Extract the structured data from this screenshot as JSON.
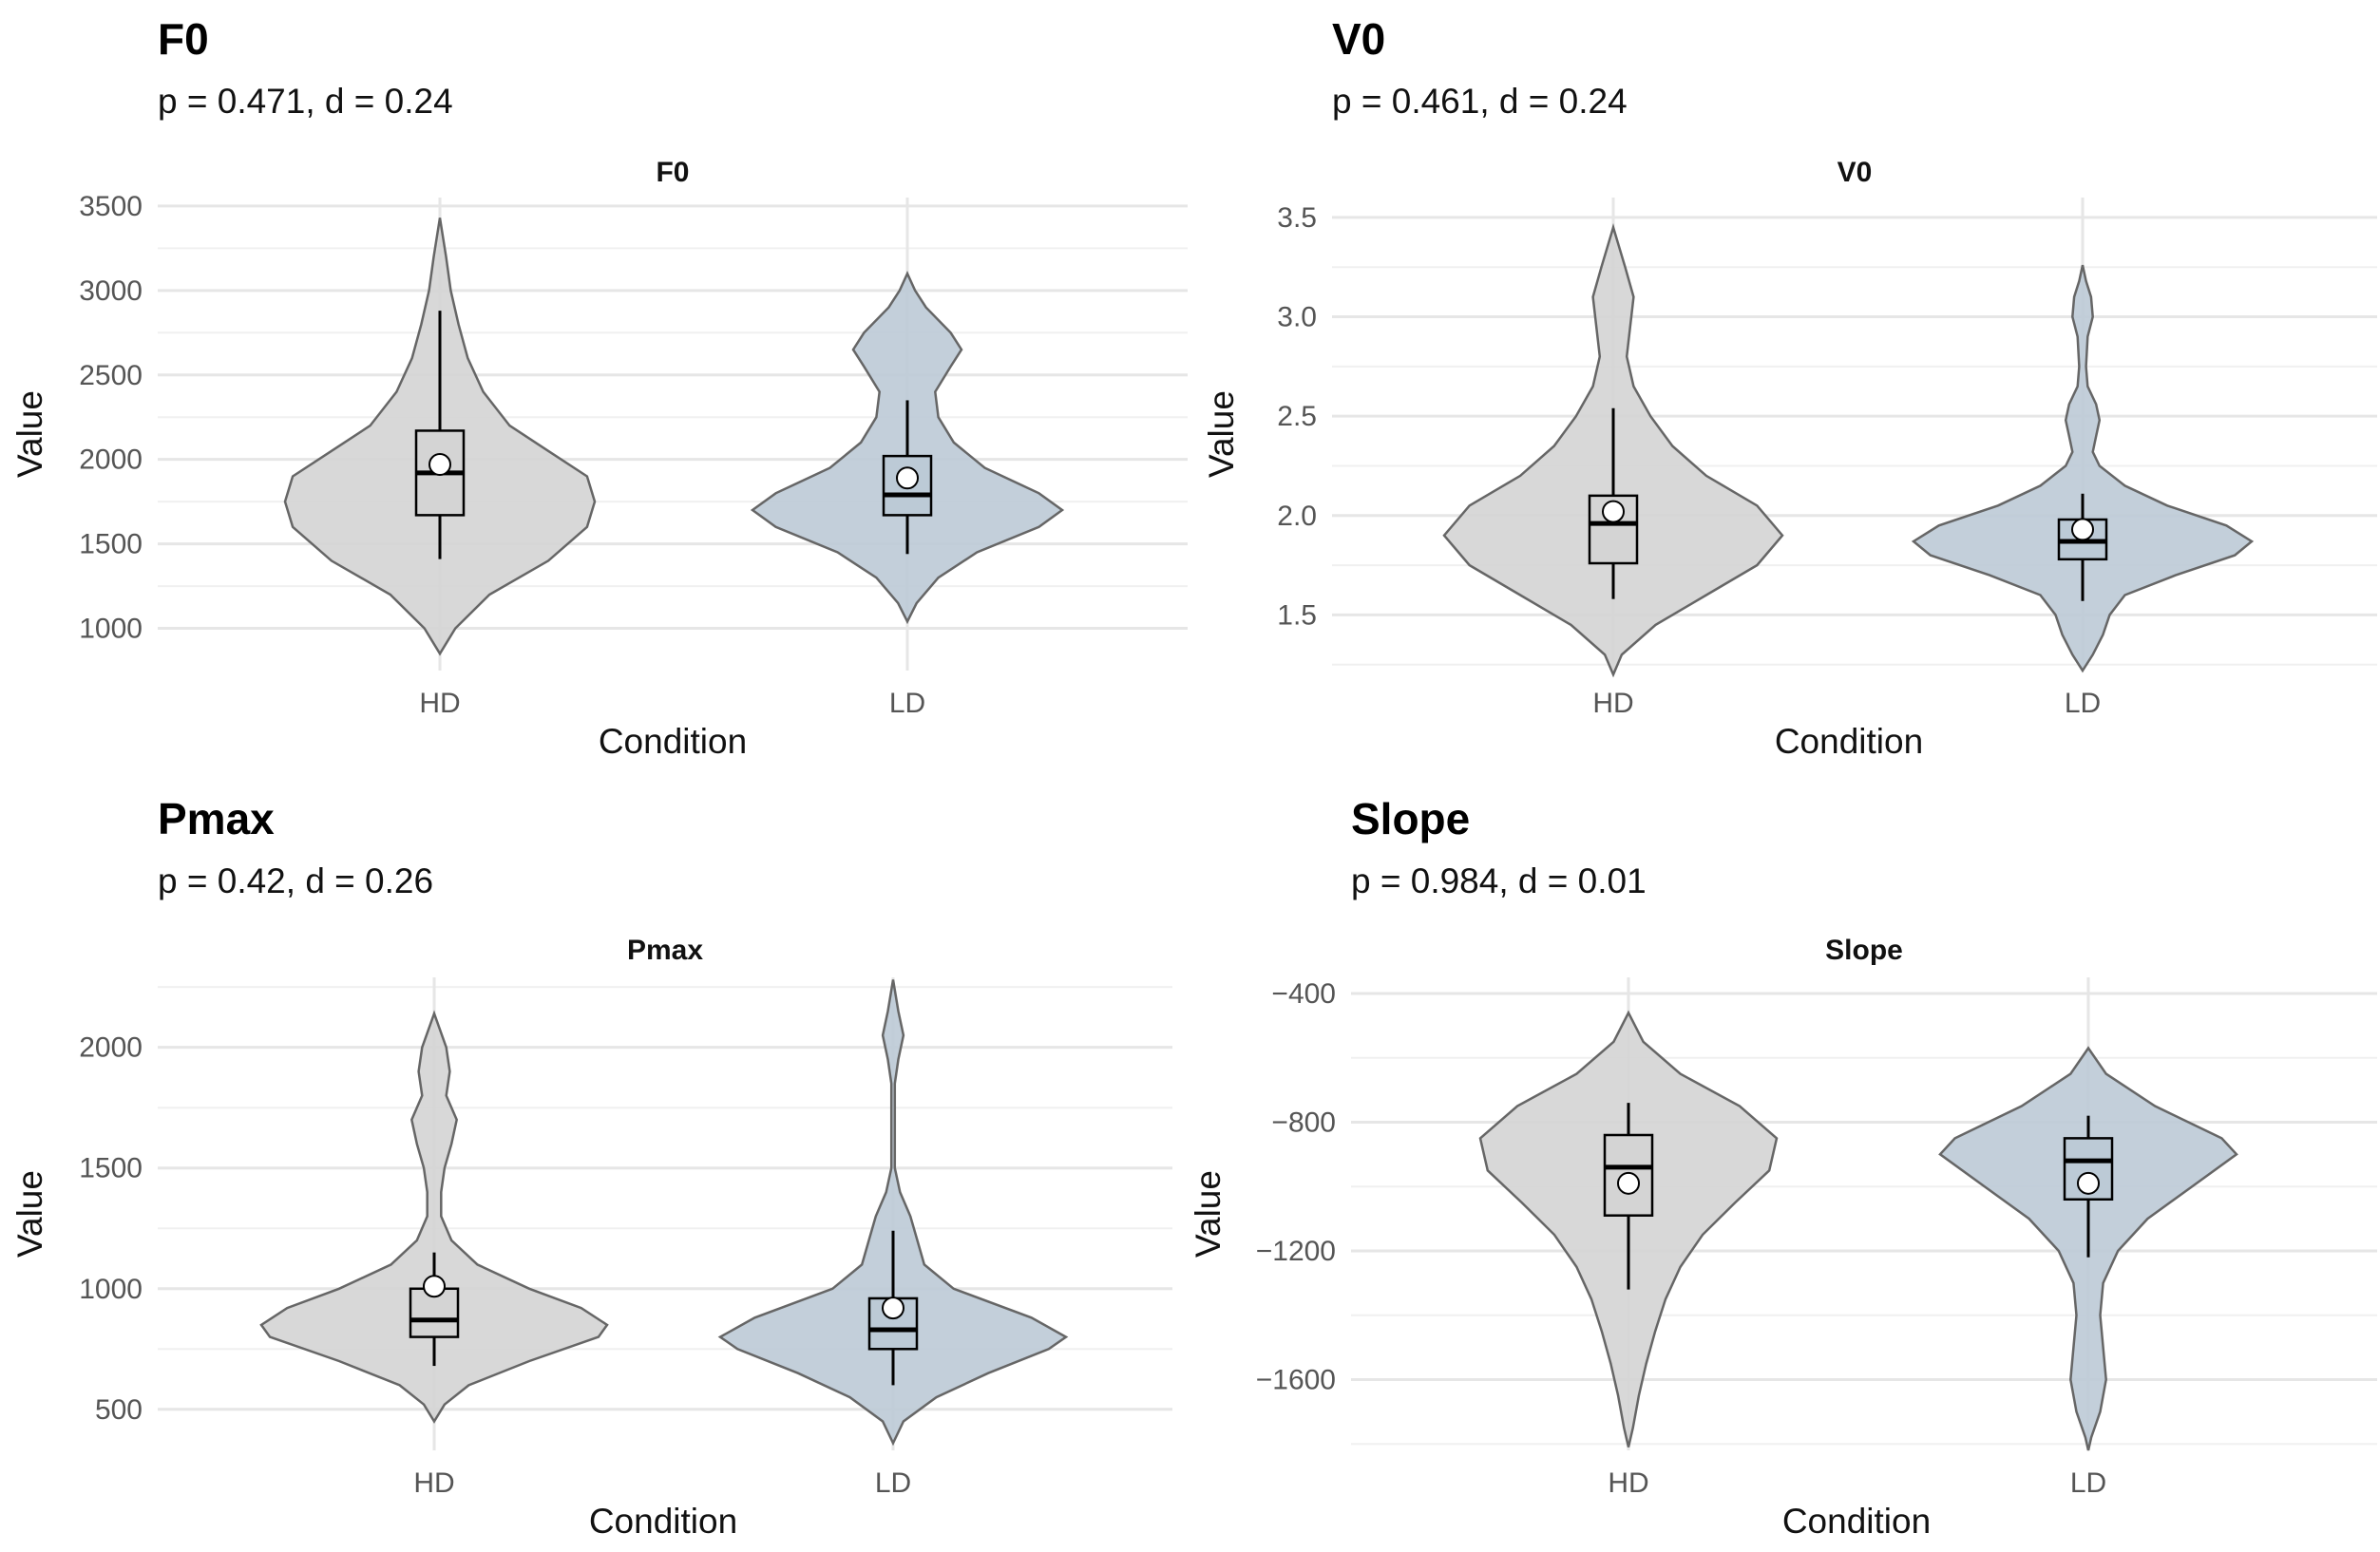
{
  "colors": {
    "HD": "#d4d4d4",
    "LD": "#bccad6"
  },
  "chart_data": [
    {
      "type": "violin",
      "title": "F0",
      "subtitle": "p = 0.471, d = 0.24",
      "facet_label": "F0",
      "xlabel": "Condition",
      "ylabel": "Value",
      "ylim": [
        750,
        3550
      ],
      "yticks": [
        1000,
        1500,
        2000,
        2500,
        3000,
        3500
      ],
      "categories": [
        "HD",
        "LD"
      ],
      "groups": [
        {
          "name": "HD",
          "whisker_low": 1410,
          "q1": 1670,
          "median": 1920,
          "q3": 2170,
          "whisker_high": 2880,
          "mean": 1970,
          "density": [
            [
              850,
              0
            ],
            [
              1000,
              0.1
            ],
            [
              1200,
              0.32
            ],
            [
              1400,
              0.7
            ],
            [
              1600,
              0.95
            ],
            [
              1750,
              1.0
            ],
            [
              1900,
              0.95
            ],
            [
              2050,
              0.7
            ],
            [
              2200,
              0.45
            ],
            [
              2400,
              0.28
            ],
            [
              2600,
              0.18
            ],
            [
              2800,
              0.12
            ],
            [
              3000,
              0.07
            ],
            [
              3200,
              0.04
            ],
            [
              3430,
              0
            ]
          ]
        },
        {
          "name": "LD",
          "whisker_low": 1440,
          "q1": 1670,
          "median": 1790,
          "q3": 2020,
          "whisker_high": 2350,
          "mean": 1890,
          "density": [
            [
              1040,
              0
            ],
            [
              1150,
              0.06
            ],
            [
              1300,
              0.2
            ],
            [
              1450,
              0.45
            ],
            [
              1600,
              0.85
            ],
            [
              1700,
              1.0
            ],
            [
              1800,
              0.85
            ],
            [
              1950,
              0.5
            ],
            [
              2100,
              0.3
            ],
            [
              2250,
              0.2
            ],
            [
              2400,
              0.18
            ],
            [
              2550,
              0.28
            ],
            [
              2650,
              0.35
            ],
            [
              2750,
              0.28
            ],
            [
              2900,
              0.12
            ],
            [
              3000,
              0.05
            ],
            [
              3100,
              0
            ]
          ]
        }
      ]
    },
    {
      "type": "violin",
      "title": "V0",
      "subtitle": "p = 0.461, d = 0.24",
      "facet_label": "V0",
      "xlabel": "Condition",
      "ylabel": "Value",
      "ylim": [
        1.22,
        3.6
      ],
      "yticks": [
        1.5,
        2.0,
        2.5,
        3.0,
        3.5
      ],
      "categories": [
        "HD",
        "LD"
      ],
      "groups": [
        {
          "name": "HD",
          "whisker_low": 1.58,
          "q1": 1.76,
          "median": 1.96,
          "q3": 2.1,
          "whisker_high": 2.54,
          "mean": 2.02,
          "density": [
            [
              1.2,
              0
            ],
            [
              1.3,
              0.05
            ],
            [
              1.45,
              0.25
            ],
            [
              1.6,
              0.55
            ],
            [
              1.75,
              0.85
            ],
            [
              1.9,
              1.0
            ],
            [
              2.05,
              0.85
            ],
            [
              2.2,
              0.55
            ],
            [
              2.35,
              0.35
            ],
            [
              2.5,
              0.22
            ],
            [
              2.65,
              0.12
            ],
            [
              2.8,
              0.08
            ],
            [
              2.95,
              0.1
            ],
            [
              3.1,
              0.12
            ],
            [
              3.25,
              0.07
            ],
            [
              3.45,
              0
            ]
          ]
        },
        {
          "name": "LD",
          "whisker_low": 1.57,
          "q1": 1.78,
          "median": 1.87,
          "q3": 1.98,
          "whisker_high": 2.11,
          "mean": 1.93,
          "density": [
            [
              1.22,
              0
            ],
            [
              1.3,
              0.06
            ],
            [
              1.4,
              0.12
            ],
            [
              1.5,
              0.16
            ],
            [
              1.6,
              0.25
            ],
            [
              1.7,
              0.55
            ],
            [
              1.8,
              0.9
            ],
            [
              1.87,
              1.0
            ],
            [
              1.95,
              0.85
            ],
            [
              2.05,
              0.5
            ],
            [
              2.15,
              0.25
            ],
            [
              2.25,
              0.1
            ],
            [
              2.32,
              0.06
            ],
            [
              2.4,
              0.08
            ],
            [
              2.48,
              0.1
            ],
            [
              2.56,
              0.08
            ],
            [
              2.65,
              0.03
            ],
            [
              2.75,
              0.02
            ],
            [
              2.9,
              0.03
            ],
            [
              3.0,
              0.06
            ],
            [
              3.1,
              0.05
            ],
            [
              3.18,
              0.02
            ],
            [
              3.26,
              0
            ]
          ]
        }
      ]
    },
    {
      "type": "violin",
      "title": "Pmax",
      "subtitle": "p = 0.42, d = 0.26",
      "facet_label": "Pmax",
      "xlabel": "Condition",
      "ylabel": "Value",
      "ylim": [
        330,
        2290
      ],
      "yticks": [
        500,
        1000,
        1500,
        2000
      ],
      "categories": [
        "HD",
        "LD"
      ],
      "groups": [
        {
          "name": "HD",
          "whisker_low": 680,
          "q1": 800,
          "median": 870,
          "q3": 1000,
          "whisker_high": 1150,
          "mean": 1010,
          "density": [
            [
              450,
              0
            ],
            [
              520,
              0.06
            ],
            [
              600,
              0.2
            ],
            [
              700,
              0.55
            ],
            [
              800,
              0.95
            ],
            [
              850,
              1.0
            ],
            [
              920,
              0.85
            ],
            [
              1000,
              0.55
            ],
            [
              1100,
              0.25
            ],
            [
              1200,
              0.1
            ],
            [
              1300,
              0.04
            ],
            [
              1400,
              0.04
            ],
            [
              1500,
              0.06
            ],
            [
              1600,
              0.1
            ],
            [
              1700,
              0.13
            ],
            [
              1800,
              0.07
            ],
            [
              1900,
              0.09
            ],
            [
              2000,
              0.07
            ],
            [
              2140,
              0
            ]
          ]
        },
        {
          "name": "LD",
          "whisker_low": 600,
          "q1": 750,
          "median": 830,
          "q3": 960,
          "whisker_high": 1240,
          "mean": 920,
          "density": [
            [
              360,
              0
            ],
            [
              450,
              0.06
            ],
            [
              550,
              0.25
            ],
            [
              650,
              0.55
            ],
            [
              750,
              0.9
            ],
            [
              800,
              1.0
            ],
            [
              880,
              0.8
            ],
            [
              1000,
              0.35
            ],
            [
              1100,
              0.18
            ],
            [
              1200,
              0.14
            ],
            [
              1300,
              0.1
            ],
            [
              1400,
              0.04
            ],
            [
              1500,
              0.01
            ],
            [
              1700,
              0.01
            ],
            [
              1850,
              0.01
            ],
            [
              1950,
              0.03
            ],
            [
              2050,
              0.06
            ],
            [
              2150,
              0.03
            ],
            [
              2280,
              0
            ]
          ]
        }
      ]
    },
    {
      "type": "violin",
      "title": "Slope",
      "subtitle": "p = 0.984, d = 0.01",
      "facet_label": "Slope",
      "xlabel": "Condition",
      "ylabel": "Value",
      "ylim": [
        -1820,
        -350
      ],
      "yticks": [
        -400,
        -800,
        -1200,
        -1600
      ],
      "categories": [
        "HD",
        "LD"
      ],
      "groups": [
        {
          "name": "HD",
          "whisker_low": -1320,
          "q1": -1090,
          "median": -940,
          "q3": -840,
          "whisker_high": -740,
          "mean": -990,
          "density": [
            [
              -460,
              0
            ],
            [
              -550,
              0.1
            ],
            [
              -650,
              0.35
            ],
            [
              -750,
              0.75
            ],
            [
              -850,
              1.0
            ],
            [
              -950,
              0.95
            ],
            [
              -1050,
              0.72
            ],
            [
              -1150,
              0.5
            ],
            [
              -1250,
              0.35
            ],
            [
              -1350,
              0.25
            ],
            [
              -1450,
              0.18
            ],
            [
              -1550,
              0.12
            ],
            [
              -1650,
              0.07
            ],
            [
              -1750,
              0.03
            ],
            [
              -1810,
              0
            ]
          ]
        },
        {
          "name": "LD",
          "whisker_low": -1220,
          "q1": -1040,
          "median": -920,
          "q3": -850,
          "whisker_high": -780,
          "mean": -990,
          "density": [
            [
              -570,
              0
            ],
            [
              -650,
              0.12
            ],
            [
              -750,
              0.45
            ],
            [
              -850,
              0.9
            ],
            [
              -900,
              1.0
            ],
            [
              -1000,
              0.7
            ],
            [
              -1100,
              0.4
            ],
            [
              -1200,
              0.2
            ],
            [
              -1300,
              0.1
            ],
            [
              -1400,
              0.08
            ],
            [
              -1500,
              0.1
            ],
            [
              -1600,
              0.12
            ],
            [
              -1700,
              0.08
            ],
            [
              -1780,
              0.02
            ],
            [
              -1820,
              0
            ]
          ]
        }
      ]
    }
  ]
}
